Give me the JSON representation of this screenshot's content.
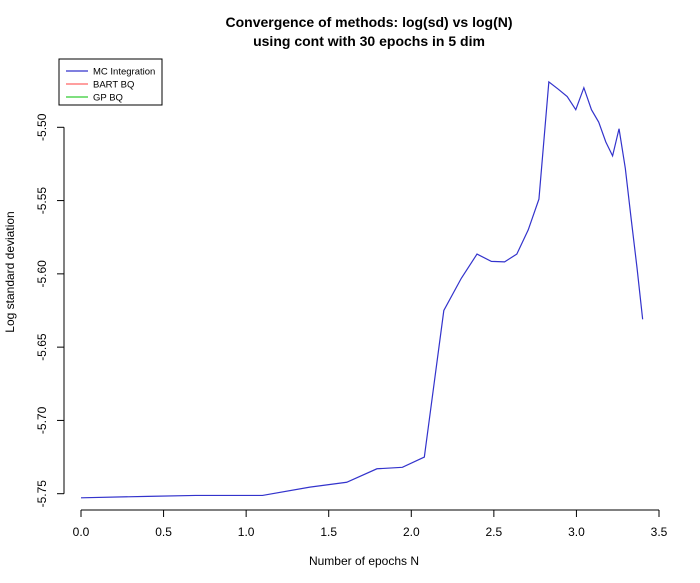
{
  "chart_data": {
    "type": "line",
    "title": "Convergence of methods: log(sd) vs log(N)",
    "subtitle": "using cont with 30 epochs in 5 dim",
    "xlabel": "Number of epochs N",
    "ylabel": "Log standard deviation",
    "xlim": [
      0,
      3.5
    ],
    "ylim": [
      -5.755,
      -5.485
    ],
    "x_ticks": [
      "0.0",
      "0.5",
      "1.0",
      "1.5",
      "2.0",
      "2.5",
      "3.0",
      "3.5"
    ],
    "y_ticks": [
      "-5.75",
      "-5.70",
      "-5.65",
      "-5.60",
      "-5.55",
      "-5.50"
    ],
    "grid": false,
    "legend_position": "top-left",
    "legend": [
      {
        "name": "MC Integration",
        "color": "#3333cc"
      },
      {
        "name": "BART BQ",
        "color": "#ff6666"
      },
      {
        "name": "GP BQ",
        "color": "#33cc33"
      }
    ],
    "series": [
      {
        "name": "MC Integration",
        "color": "#3333cc",
        "x": [
          0.0,
          0.405,
          0.693,
          1.099,
          1.386,
          1.609,
          1.792,
          1.946,
          2.079,
          2.197,
          2.303,
          2.398,
          2.485,
          2.565,
          2.639,
          2.708,
          2.773,
          2.833,
          2.89,
          2.944,
          2.996,
          3.045,
          3.091,
          3.135,
          3.178,
          3.219,
          3.258,
          3.296,
          3.332,
          3.367,
          3.401
        ],
        "y": [
          -5.7528,
          -5.7518,
          -5.7512,
          -5.7512,
          -5.7455,
          -5.7422,
          -5.733,
          -5.732,
          -5.725,
          -5.625,
          -5.603,
          -5.5865,
          -5.5915,
          -5.5918,
          -5.5865,
          -5.57,
          -5.549,
          -5.469,
          -5.474,
          -5.479,
          -5.488,
          -5.473,
          -5.488,
          -5.4965,
          -5.51,
          -5.5195,
          -5.501,
          -5.528,
          -5.563,
          -5.596,
          -5.631
        ]
      }
    ]
  }
}
